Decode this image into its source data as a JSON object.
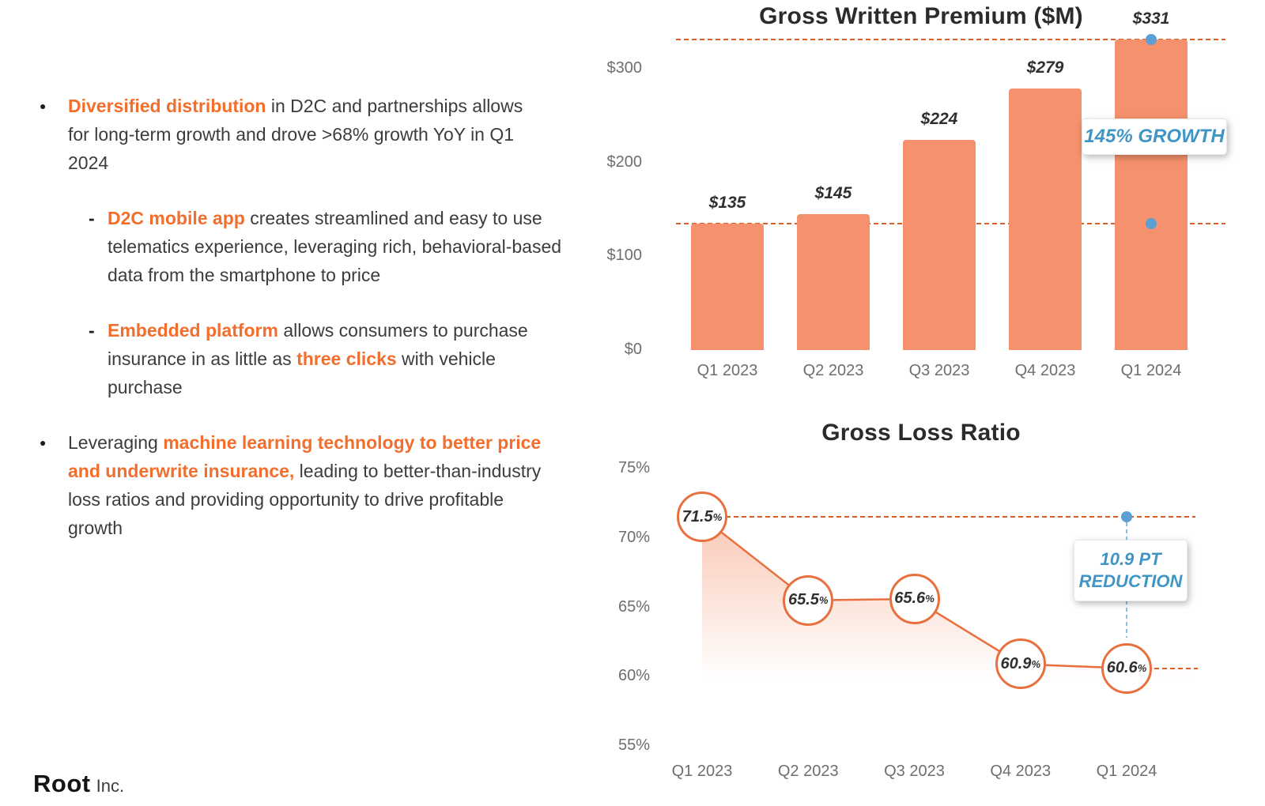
{
  "colors": {
    "accent_orange_text": "#f26e2d",
    "bar_fill": "#f5916c",
    "dashed_line_orange": "#da5f28",
    "annotation_blue": "#3f96c5",
    "dot_blue": "#5b9fd4",
    "body_text": "#3c3c3c",
    "axis_text": "#6e6e6e",
    "title_text": "#2b2b2b"
  },
  "bullets": [
    {
      "type": "bullet",
      "segments": [
        {
          "t": "Diversified distribution",
          "b": true
        },
        {
          "t": " in D2C and partnerships allows for long-term growth and drove >68% growth YoY in Q1 2024"
        }
      ]
    },
    {
      "type": "sub",
      "segments": [
        {
          "t": "D2C mobile app",
          "b": true
        },
        {
          "t": " creates streamlined and easy to use telematics experience, leveraging rich, behavioral-based data from the smartphone to price"
        }
      ]
    },
    {
      "type": "sub",
      "segments": [
        {
          "t": "Embedded platform",
          "b": true
        },
        {
          "t": " allows consumers to purchase insurance in as little as "
        },
        {
          "t": "three clicks",
          "b": true
        },
        {
          "t": " with vehicle purchase"
        }
      ]
    },
    {
      "type": "bullet",
      "segments": [
        {
          "t": "Leveraging "
        },
        {
          "t": "machine learning technology to better price and underwrite insurance,",
          "b": true
        },
        {
          "t": " leading to better-than-industry loss ratios and providing opportunity to drive profitable growth"
        }
      ]
    }
  ],
  "logo": {
    "name": "Root",
    "suffix": "Inc."
  },
  "chart_data": [
    {
      "type": "bar",
      "title": "Gross Written Premium ($M)",
      "categories": [
        "Q1 2023",
        "Q2 2023",
        "Q3 2023",
        "Q4 2023",
        "Q1 2024"
      ],
      "values": [
        135,
        145,
        224,
        279,
        331
      ],
      "value_labels": [
        "$135",
        "$145",
        "$224",
        "$279",
        "$331"
      ],
      "y_ticks": [
        "$300",
        "$200",
        "$100",
        "$0"
      ],
      "y_tick_values": [
        300,
        200,
        100,
        0
      ],
      "ylim": [
        0,
        340
      ],
      "grid": false,
      "legend": "none",
      "reference_lines": [
        331,
        135
      ],
      "annotation": "145% GROWTH"
    },
    {
      "type": "line",
      "title": "Gross Loss Ratio",
      "categories": [
        "Q1 2023",
        "Q2 2023",
        "Q3 2023",
        "Q4 2023",
        "Q1 2024"
      ],
      "values": [
        71.5,
        65.5,
        65.6,
        60.9,
        60.6
      ],
      "point_labels": [
        "71.5",
        "65.5",
        "65.6",
        "60.9",
        "60.6"
      ],
      "unit": "%",
      "y_ticks": [
        "75%",
        "70%",
        "65%",
        "60%",
        "55%"
      ],
      "y_tick_values": [
        75,
        70,
        65,
        60,
        55
      ],
      "ylim": [
        55,
        75
      ],
      "grid": false,
      "legend": "none",
      "reference_lines": [
        71.5,
        60.6
      ],
      "annotation": "10.9 PT REDUCTION",
      "annotation_lines": [
        "10.9 PT",
        "REDUCTION"
      ]
    }
  ]
}
